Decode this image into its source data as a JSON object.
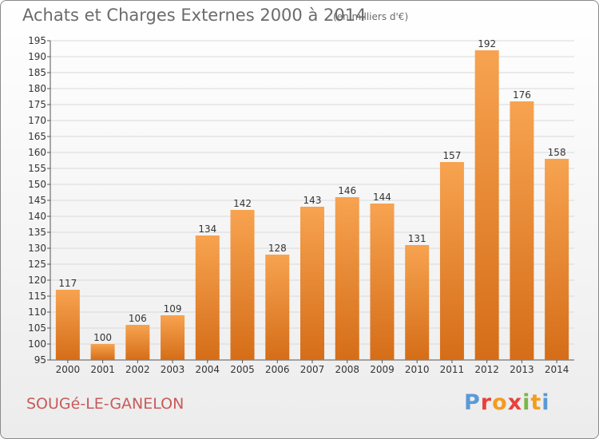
{
  "header": {
    "title": "Achats et Charges Externes 2000 à 2014",
    "subtitle": "(en milliers d'€)"
  },
  "footer": {
    "place": "SOUGé-LE-GANELON",
    "logo": "Proxiti"
  },
  "colors": {
    "bar_top": "#f7a350",
    "bar_bottom": "#d56d18",
    "grid": "#d9d9d9",
    "place": "#c85a5a",
    "logo_letters": [
      "#5a9ad6",
      "#e8413c",
      "#f39c1f",
      "#e8413c",
      "#7ab648",
      "#f39c1f",
      "#5a9ad6"
    ]
  },
  "chart_data": {
    "type": "bar",
    "title": "Achats et Charges Externes 2000 à 2014",
    "subtitle": "(en milliers d'€)",
    "categories": [
      "2000",
      "2001",
      "2002",
      "2003",
      "2004",
      "2005",
      "2006",
      "2007",
      "2008",
      "2009",
      "2010",
      "2011",
      "2012",
      "2013",
      "2014"
    ],
    "values": [
      117,
      100,
      106,
      109,
      134,
      142,
      128,
      143,
      146,
      144,
      131,
      157,
      192,
      176,
      158
    ],
    "ylim": [
      95,
      195
    ],
    "yticks": [
      95,
      100,
      105,
      110,
      115,
      120,
      125,
      130,
      135,
      140,
      145,
      150,
      155,
      160,
      165,
      170,
      175,
      180,
      185,
      190,
      195
    ],
    "grid": true,
    "xlabel": "",
    "ylabel": ""
  }
}
